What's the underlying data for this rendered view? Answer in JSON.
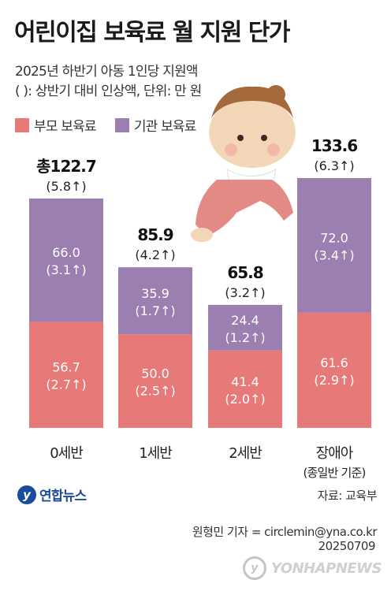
{
  "header": {
    "title": "어린이집 보육료 월 지원 단가",
    "subtitle_line1": "2025년 하반기 아동 1인당 지원액",
    "subtitle_line2": "( ): 상반기 대비 인상액, 단위: 만 원"
  },
  "legend": [
    {
      "label": "부모 보육료",
      "color": "#e77a78"
    },
    {
      "label": "기관 보육료",
      "color": "#9b7fb1"
    }
  ],
  "chart_data": {
    "type": "bar",
    "stacked": true,
    "categories": [
      "0세반",
      "1세반",
      "2세반",
      "장애아"
    ],
    "category_notes": [
      "",
      "",
      "",
      "(종일반 기준)"
    ],
    "series": [
      {
        "name": "부모 보육료",
        "values": [
          56.7,
          50.0,
          41.4,
          61.6
        ],
        "increase_labels": [
          "(2.7↑)",
          "(2.5↑)",
          "(2.0↑)",
          "(2.9↑)"
        ],
        "value_labels": [
          "56.7",
          "50.0",
          "41.4",
          "61.6"
        ],
        "color": "#e77a78"
      },
      {
        "name": "기관 보육료",
        "values": [
          66.0,
          35.9,
          24.4,
          72.0
        ],
        "increase_labels": [
          "(3.1↑)",
          "(1.7↑)",
          "(1.2↑)",
          "(3.4↑)"
        ],
        "value_labels": [
          "66.0",
          "35.9",
          "24.4",
          "72.0"
        ],
        "color": "#9b7fb1"
      }
    ],
    "totals": [
      122.7,
      85.9,
      65.8,
      133.6
    ],
    "total_labels": [
      "총122.7",
      "85.9",
      "65.8",
      "133.6"
    ],
    "total_increase_labels": [
      "(5.8↑)",
      "(4.2↑)",
      "(3.2↑)",
      "(6.3↑)"
    ],
    "ylim": [
      0,
      133.6
    ],
    "grid": false
  },
  "footer": {
    "logo_text": "연합뉴스",
    "source": "자료: 교육부",
    "reporter": "원형민 기자 = circlemin@yna.co.kr",
    "date": "20250709",
    "watermark": "YONHAPNEWS"
  }
}
